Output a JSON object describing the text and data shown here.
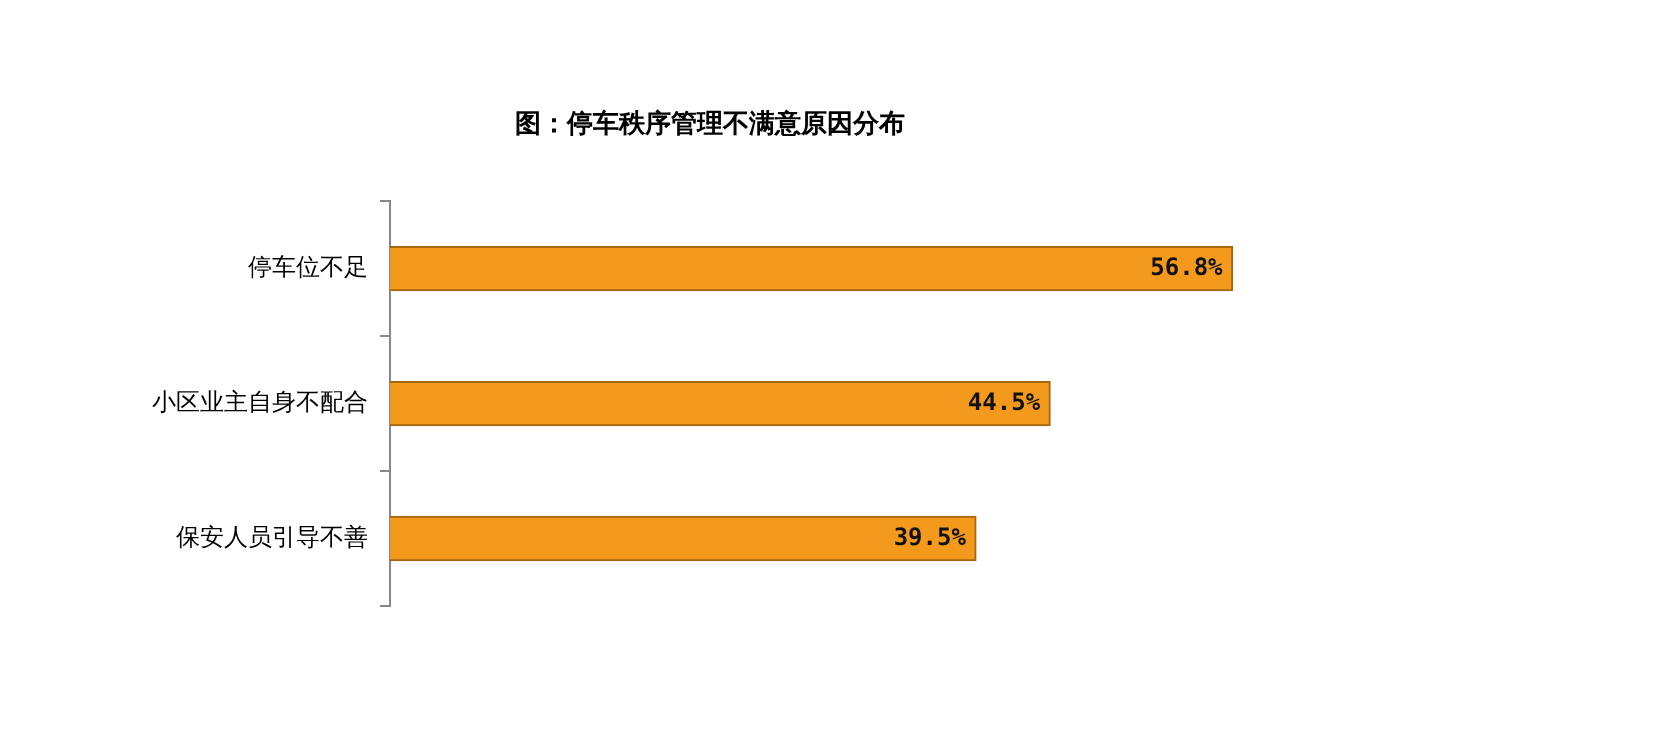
{
  "chart_data": {
    "type": "bar",
    "orientation": "horizontal",
    "title": "图：停车秩序管理不满意原因分布",
    "categories": [
      "停车位不足",
      "小区业主自身不配合",
      "保安人员引导不善"
    ],
    "values": [
      56.8,
      44.5,
      39.5
    ],
    "value_labels": [
      "56.8%",
      "44.5%",
      "39.5%"
    ],
    "color": "#f39a1c",
    "grid": false,
    "legend": false
  }
}
